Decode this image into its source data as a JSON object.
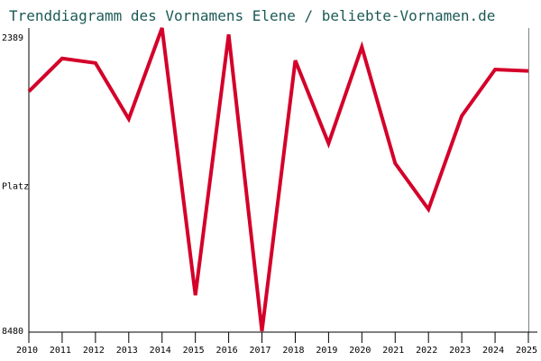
{
  "chart_data": {
    "type": "line",
    "title": "Trenddiagramm des Vornamens Elene / beliebte-Vornamen.de",
    "ylabel": "Platz",
    "y_axis_inverted": true,
    "ylim": [
      2389,
      8480
    ],
    "y_tick_labels": [
      "2389",
      "8480"
    ],
    "categories": [
      "2010",
      "2011",
      "2012",
      "2013",
      "2014",
      "2015",
      "2016",
      "2017",
      "2018",
      "2019",
      "2020",
      "2021",
      "2022",
      "2023",
      "2024",
      "2025"
    ],
    "series": [
      {
        "values": [
          3660,
          3000,
          3090,
          4210,
          2389,
          7740,
          2520,
          8460,
          3040,
          4700,
          2770,
          5100,
          6020,
          4150,
          3220,
          3250
        ],
        "color": "#d4002a"
      }
    ],
    "grid": {
      "vertical": true,
      "horizontal": false
    }
  }
}
